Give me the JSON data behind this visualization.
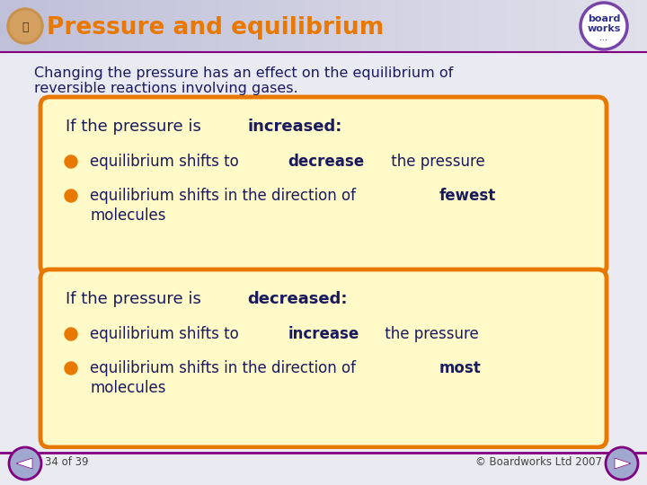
{
  "title": "Pressure and equilibrium",
  "title_color": "#E87800",
  "background_color": "#EAEAF2",
  "header_bg_color": "#C8C8DC",
  "header_gradient_end": "#E8E8F0",
  "intro_text_line1": "Changing the pressure has an effect on the equilibrium of",
  "intro_text_line2": "reversible reactions involving gases.",
  "box1_bg": "#FFFAC8",
  "box1_border": "#E87800",
  "box2_bg": "#FFFAC8",
  "box2_border": "#E87800",
  "box1_header_plain": "If the pressure is ",
  "box1_header_bold": "increased:",
  "box2_header_plain": "If the pressure is ",
  "box2_header_bold": "decreased:",
  "text_color": "#1A1A5E",
  "bullet_color": "#E87800",
  "box1_bullets": [
    {
      "plain1": "equilibrium shifts to ",
      "bold": "decrease",
      "plain2": " the pressure",
      "wrap": false
    },
    {
      "plain1": "equilibrium shifts in the direction of ",
      "bold": "fewest",
      "plain2": "",
      "wrap": true,
      "wrap_text": "molecules"
    }
  ],
  "box2_bullets": [
    {
      "plain1": "equilibrium shifts to ",
      "bold": "increase",
      "plain2": " the pressure",
      "wrap": false
    },
    {
      "plain1": "equilibrium shifts in the direction of ",
      "bold": "most",
      "plain2": "",
      "wrap": true,
      "wrap_text": "molecules"
    }
  ],
  "footer_left": "34 of 39",
  "footer_right": "© Boardworks Ltd 2007",
  "footer_color": "#444444",
  "footer_line_color": "#800080",
  "nav_arrow_fill": "#A0A8D0",
  "nav_arrow_edge": "#800080"
}
